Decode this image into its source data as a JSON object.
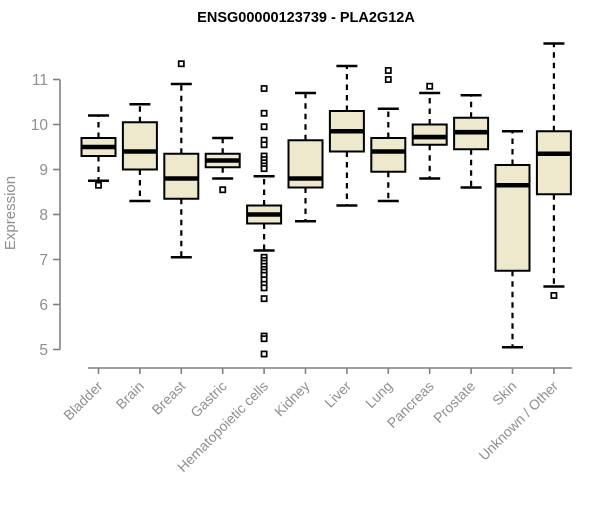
{
  "title": "ENSG00000123739 - PLA2G12A",
  "chart_data": {
    "type": "boxplot",
    "title": "ENSG00000123739 - PLA2G12A",
    "xlabel": "",
    "ylabel": "Expression",
    "ylim": [
      5,
      11.9
    ],
    "yticks": [
      5,
      6,
      7,
      8,
      9,
      10,
      11
    ],
    "grid": false,
    "legend": "none",
    "box_fill": "#EEE8CD",
    "box_border": "#000000",
    "median_color": "#000000",
    "whisker_style": "dashed",
    "axis_color": "#808080",
    "tick_label_color": "#8f8f8f",
    "title_color": "#000000",
    "categories": [
      "Bladder",
      "Brain",
      "Breast",
      "Gastric",
      "Hematopoietic cells",
      "Kidney",
      "Liver",
      "Lung",
      "Pancreas",
      "Prostate",
      "Skin",
      "Unknown / Other"
    ],
    "boxes": [
      {
        "category": "Bladder",
        "whisker_low": 8.75,
        "q1": 9.3,
        "median": 9.5,
        "q3": 9.7,
        "whisker_high": 10.2,
        "outliers": [
          8.65
        ]
      },
      {
        "category": "Brain",
        "whisker_low": 8.3,
        "q1": 9.0,
        "median": 9.4,
        "q3": 10.05,
        "whisker_high": 10.45,
        "outliers": []
      },
      {
        "category": "Breast",
        "whisker_low": 7.05,
        "q1": 8.35,
        "median": 8.8,
        "q3": 9.35,
        "whisker_high": 10.9,
        "outliers": [
          11.35
        ]
      },
      {
        "category": "Gastric",
        "whisker_low": 8.8,
        "q1": 9.05,
        "median": 9.2,
        "q3": 9.35,
        "whisker_high": 9.7,
        "outliers": [
          8.55
        ]
      },
      {
        "category": "Hematopoietic cells",
        "whisker_low": 7.2,
        "q1": 7.8,
        "median": 8.0,
        "q3": 8.2,
        "whisker_high": 8.85,
        "outliers": [
          10.8,
          10.25,
          9.95,
          9.65,
          9.55,
          9.3,
          9.22,
          9.15,
          9.08,
          9.02,
          7.05,
          6.98,
          6.92,
          6.85,
          6.78,
          6.72,
          6.65,
          6.55,
          6.45,
          6.37,
          6.13,
          5.3,
          5.24,
          4.9
        ]
      },
      {
        "category": "Kidney",
        "whisker_low": 7.85,
        "q1": 8.6,
        "median": 8.8,
        "q3": 9.65,
        "whisker_high": 10.7,
        "outliers": []
      },
      {
        "category": "Liver",
        "whisker_low": 8.2,
        "q1": 9.4,
        "median": 9.85,
        "q3": 10.3,
        "whisker_high": 11.3,
        "outliers": []
      },
      {
        "category": "Lung",
        "whisker_low": 8.3,
        "q1": 8.95,
        "median": 9.4,
        "q3": 9.7,
        "whisker_high": 10.35,
        "outliers": [
          11.2,
          11.0
        ]
      },
      {
        "category": "Pancreas",
        "whisker_low": 8.8,
        "q1": 9.55,
        "median": 9.72,
        "q3": 10.0,
        "whisker_high": 10.7,
        "outliers": [
          10.85
        ]
      },
      {
        "category": "Prostate",
        "whisker_low": 8.6,
        "q1": 9.45,
        "median": 9.83,
        "q3": 10.15,
        "whisker_high": 10.65,
        "outliers": []
      },
      {
        "category": "Skin",
        "whisker_low": 5.05,
        "q1": 6.75,
        "median": 8.65,
        "q3": 9.1,
        "whisker_high": 9.85,
        "outliers": []
      },
      {
        "category": "Unknown / Other",
        "whisker_low": 6.4,
        "q1": 8.45,
        "median": 9.35,
        "q3": 9.85,
        "whisker_high": 11.8,
        "outliers": [
          6.2
        ]
      }
    ]
  }
}
